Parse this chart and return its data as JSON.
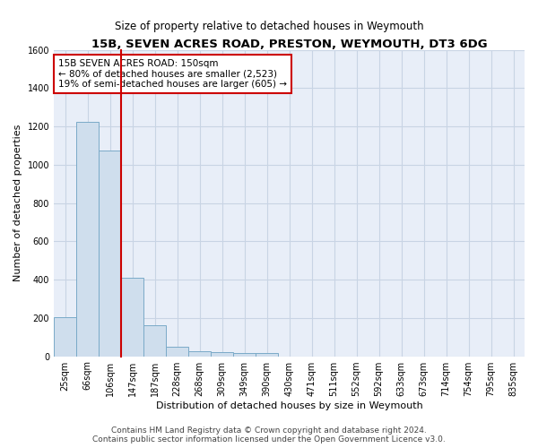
{
  "title": "15B, SEVEN ACRES ROAD, PRESTON, WEYMOUTH, DT3 6DG",
  "subtitle": "Size of property relative to detached houses in Weymouth",
  "xlabel": "Distribution of detached houses by size in Weymouth",
  "ylabel": "Number of detached properties",
  "bar_labels": [
    "25sqm",
    "66sqm",
    "106sqm",
    "147sqm",
    "187sqm",
    "228sqm",
    "268sqm",
    "309sqm",
    "349sqm",
    "390sqm",
    "430sqm",
    "471sqm",
    "511sqm",
    "552sqm",
    "592sqm",
    "633sqm",
    "673sqm",
    "714sqm",
    "754sqm",
    "795sqm",
    "835sqm"
  ],
  "bar_values": [
    205,
    1225,
    1075,
    410,
    160,
    50,
    28,
    22,
    15,
    15,
    0,
    0,
    0,
    0,
    0,
    0,
    0,
    0,
    0,
    0,
    0
  ],
  "bar_color": "#cfdeed",
  "bar_edge_color": "#7aaac8",
  "highlight_bar_index": 3,
  "highlight_color": "#cc0000",
  "annotation_text": "15B SEVEN ACRES ROAD: 150sqm\n← 80% of detached houses are smaller (2,523)\n19% of semi-detached houses are larger (605) →",
  "annotation_box_color": "#ffffff",
  "annotation_box_edge": "#cc0000",
  "ylim": [
    0,
    1600
  ],
  "yticks": [
    0,
    200,
    400,
    600,
    800,
    1000,
    1200,
    1400,
    1600
  ],
  "grid_color": "#c8d4e4",
  "bg_color": "#e8eef8",
  "footer": "Contains HM Land Registry data © Crown copyright and database right 2024.\nContains public sector information licensed under the Open Government Licence v3.0.",
  "title_fontsize": 9.5,
  "subtitle_fontsize": 8.5,
  "xlabel_fontsize": 8,
  "ylabel_fontsize": 8,
  "tick_fontsize": 7,
  "footer_fontsize": 6.5,
  "annotation_fontsize": 7.5
}
